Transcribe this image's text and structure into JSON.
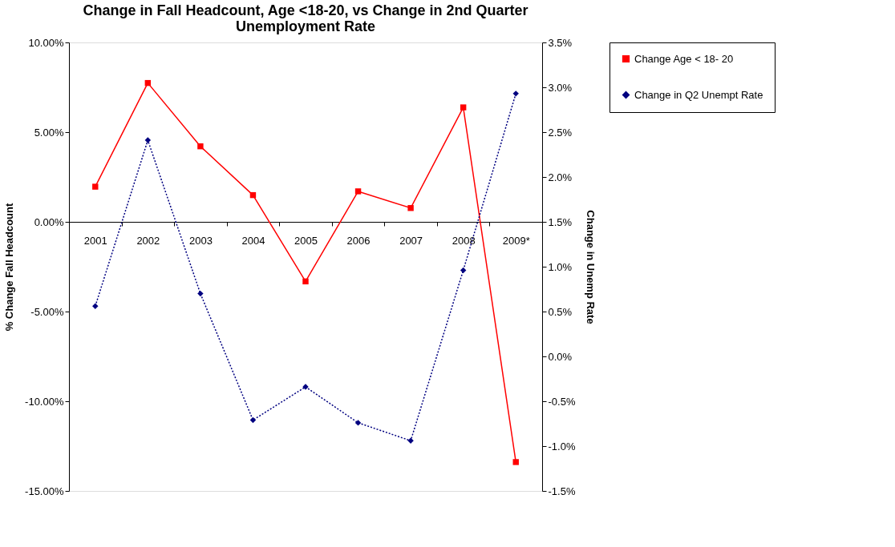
{
  "chart_data": {
    "type": "line",
    "title": "Change in Fall Headcount, Age <18-20, vs Change in 2nd Quarter Unemployment Rate",
    "ylabel": "% Change Fall Headcount",
    "y2label": "Change in Unemp Rate",
    "categories": [
      "2001",
      "2002",
      "2003",
      "2004",
      "2005",
      "2006",
      "2007",
      "2008",
      "2009*"
    ],
    "series": [
      {
        "name": "Change Age < 18- 20",
        "color": "#ff0000",
        "marker": "square",
        "line_style": "solid",
        "values": [
          1.96,
          7.74,
          4.21,
          1.49,
          -3.32,
          1.7,
          0.77,
          6.38,
          -13.39
        ]
      },
      {
        "name": "Change in Q2 Unempt Rate",
        "color": "#000080",
        "marker": "diamond",
        "line_style": "dotted",
        "axis": "y2",
        "values": [
          0.56,
          2.41,
          0.7,
          -0.71,
          -0.34,
          -0.74,
          -0.94,
          0.96,
          2.93
        ]
      }
    ],
    "ylim": [
      -15,
      10
    ],
    "yticks": [
      {
        "value": -15,
        "label": "-15.00%"
      },
      {
        "value": -10,
        "label": "-10.00%"
      },
      {
        "value": -5,
        "label": "-5.00%"
      },
      {
        "value": 0,
        "label": "0.00%"
      },
      {
        "value": 5,
        "label": "5.00%"
      },
      {
        "value": 10,
        "label": "10.00%"
      }
    ],
    "y2lim": [
      -1.5,
      3.5
    ],
    "y2ticks": [
      {
        "value": -1.5,
        "label": "-1.5%"
      },
      {
        "value": -1,
        "label": "-1.0%"
      },
      {
        "value": -0.5,
        "label": "-0.5%"
      },
      {
        "value": 0,
        "label": "0.0%"
      },
      {
        "value": 0.5,
        "label": "0.5%"
      },
      {
        "value": 1,
        "label": "1.0%"
      },
      {
        "value": 1.5,
        "label": "1.5%"
      },
      {
        "value": 2,
        "label": "2.0%"
      },
      {
        "value": 2.5,
        "label": "2.5%"
      },
      {
        "value": 3,
        "label": "3.0%"
      },
      {
        "value": 3.5,
        "label": "3.5%"
      }
    ],
    "grid": false,
    "legend": "right"
  }
}
